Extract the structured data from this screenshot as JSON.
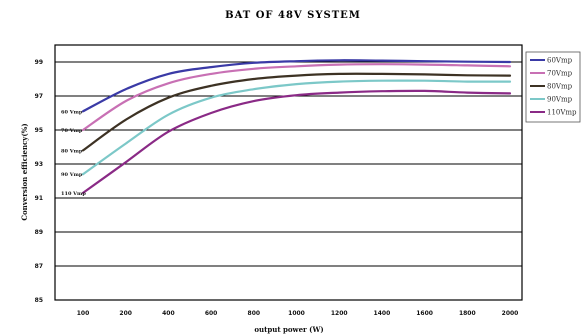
{
  "chart_data": {
    "type": "line",
    "title": "BAT OF 48V SYSTEM",
    "xlabel": "output power (W)",
    "ylabel": "Conversion efficiency(%)",
    "x": [
      100,
      200,
      400,
      600,
      800,
      1000,
      1200,
      1400,
      1600,
      1800,
      2000
    ],
    "x_tick_labels": [
      "100",
      "200",
      "400",
      "600",
      "800",
      "1000",
      "1200",
      "1400",
      "1600",
      "1800",
      "2000"
    ],
    "y_tick_labels": [
      "99",
      "97",
      "95",
      "93",
      "91",
      "89",
      "87",
      "85"
    ],
    "y_tick_values": [
      99,
      97,
      95,
      93,
      91,
      89,
      87,
      85
    ],
    "ylim": [
      85,
      100
    ],
    "grid": "horizontal",
    "legend_position": "right",
    "series": [
      {
        "name": "60Vmp",
        "inline_label": "60 Vmp",
        "color": "#3a3aa6",
        "values": [
          96.1,
          97.4,
          98.3,
          98.7,
          98.95,
          99.05,
          99.1,
          99.08,
          99.05,
          99.02,
          99.0
        ]
      },
      {
        "name": "70Vmp",
        "inline_label": "70 Vmp",
        "color": "#c870b4",
        "values": [
          95.0,
          96.7,
          97.75,
          98.3,
          98.6,
          98.75,
          98.85,
          98.87,
          98.85,
          98.8,
          98.75
        ]
      },
      {
        "name": "80Vmp",
        "inline_label": "80 Vmp",
        "color": "#3d3224",
        "values": [
          93.8,
          95.6,
          96.9,
          97.6,
          98.0,
          98.2,
          98.3,
          98.3,
          98.27,
          98.22,
          98.2
        ]
      },
      {
        "name": "90Vmp",
        "inline_label": "90 Vmp",
        "color": "#7cc8c8",
        "values": [
          92.4,
          94.2,
          95.9,
          96.9,
          97.4,
          97.7,
          97.85,
          97.9,
          97.9,
          97.85,
          97.85
        ]
      },
      {
        "name": "110Vmp",
        "inline_label": "110 Vmp",
        "color": "#8a2a86",
        "values": [
          91.3,
          93.1,
          94.9,
          96.0,
          96.7,
          97.05,
          97.2,
          97.28,
          97.3,
          97.2,
          97.15
        ]
      }
    ]
  }
}
